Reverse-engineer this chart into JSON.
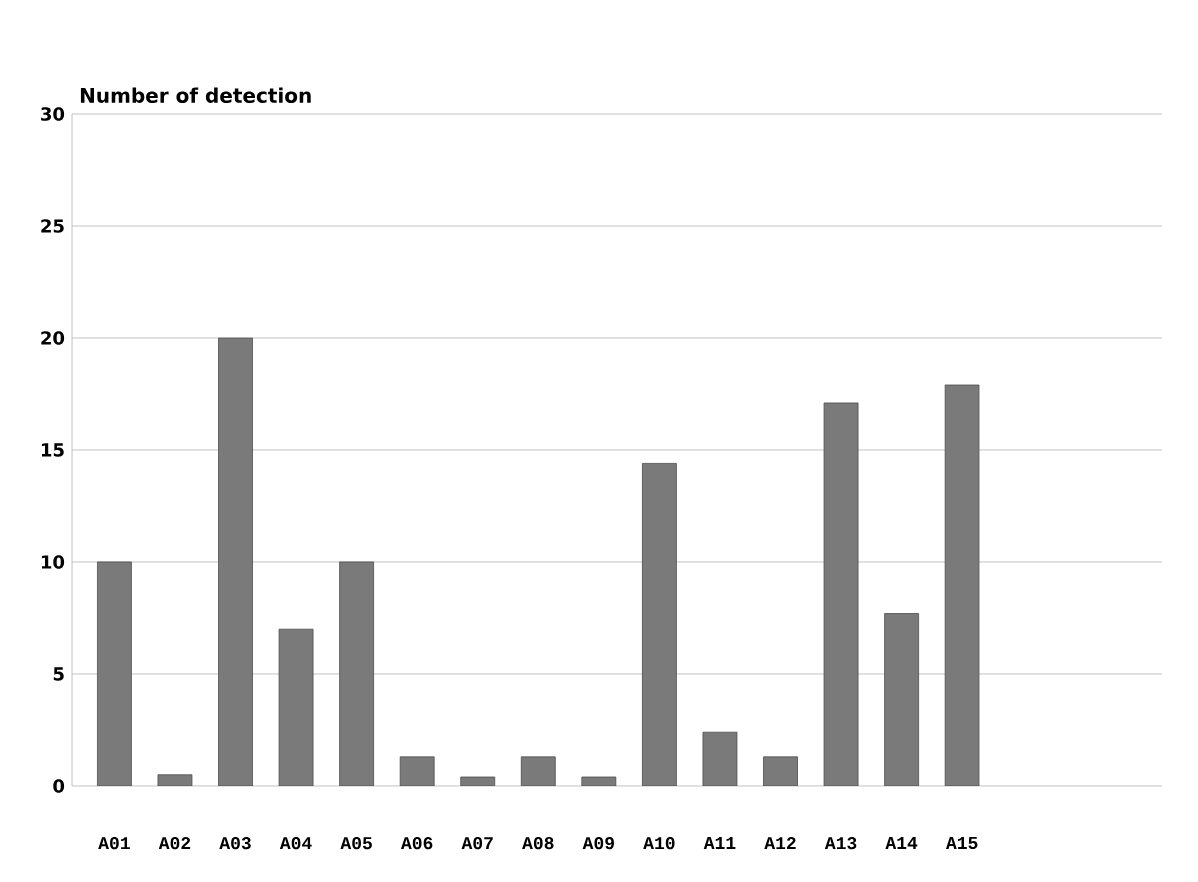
{
  "chart_data": {
    "type": "bar",
    "ylabel": "Number of detection",
    "categories": [
      "A01",
      "A02",
      "A03",
      "A04",
      "A05",
      "A06",
      "A07",
      "A08",
      "A09",
      "A10",
      "A11",
      "A12",
      "A13",
      "A14",
      "A15"
    ],
    "values": [
      10,
      0.5,
      20,
      7,
      10,
      1.3,
      0.4,
      1.3,
      0.4,
      14.4,
      2.4,
      1.3,
      17.1,
      7.7,
      17.9
    ],
    "color": "#7a7a7a",
    "ylim": [
      0,
      30
    ],
    "yticks": [
      0,
      5,
      10,
      15,
      20,
      25,
      30
    ],
    "grid": "y"
  }
}
